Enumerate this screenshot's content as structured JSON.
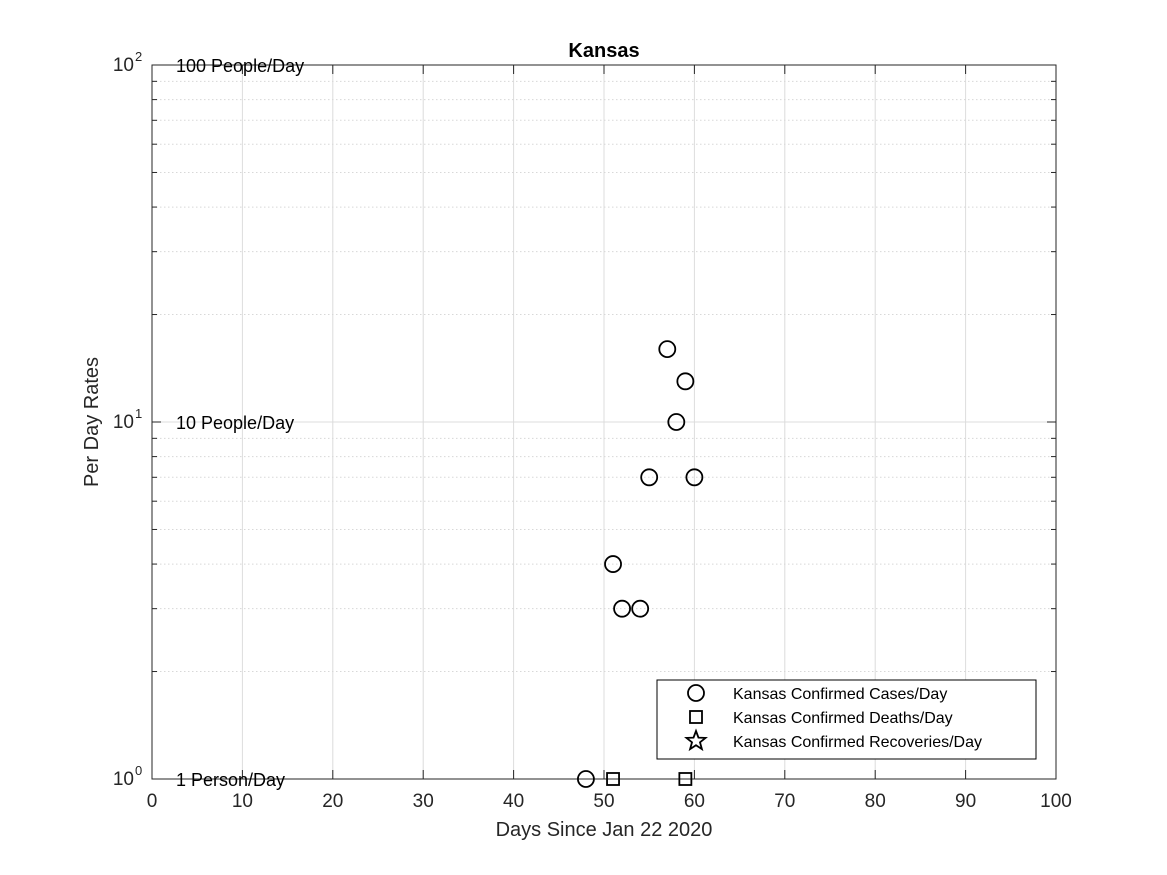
{
  "chart_data": {
    "type": "scatter",
    "title": "Kansas",
    "xlabel": "Days Since Jan 22 2020",
    "ylabel": "Per Day Rates",
    "xlim": [
      0,
      100
    ],
    "ylim": [
      1,
      100
    ],
    "yscale": "log",
    "grid": true,
    "legend_position": "bottom-right",
    "x_ticks": [
      "0",
      "10",
      "20",
      "30",
      "40",
      "50",
      "60",
      "70",
      "80",
      "90",
      "100"
    ],
    "y_ticks": [
      {
        "base": "10",
        "exp": "0"
      },
      {
        "base": "10",
        "exp": "1"
      },
      {
        "base": "10",
        "exp": "2"
      }
    ],
    "annotations": [
      "1 Person/Day",
      "10 People/Day",
      "100 People/Day"
    ],
    "series": [
      {
        "name": "Kansas Confirmed Cases/Day",
        "marker": "circle",
        "x": [
          48,
          51,
          52,
          54,
          55,
          57,
          58,
          59,
          60
        ],
        "y": [
          1,
          4,
          3,
          3,
          7,
          16,
          10,
          13,
          7
        ]
      },
      {
        "name": "Kansas Confirmed Deaths/Day",
        "marker": "square",
        "x": [
          51,
          59
        ],
        "y": [
          1,
          1
        ]
      },
      {
        "name": "Kansas Confirmed Recoveries/Day",
        "marker": "star",
        "x": [],
        "y": []
      }
    ]
  }
}
